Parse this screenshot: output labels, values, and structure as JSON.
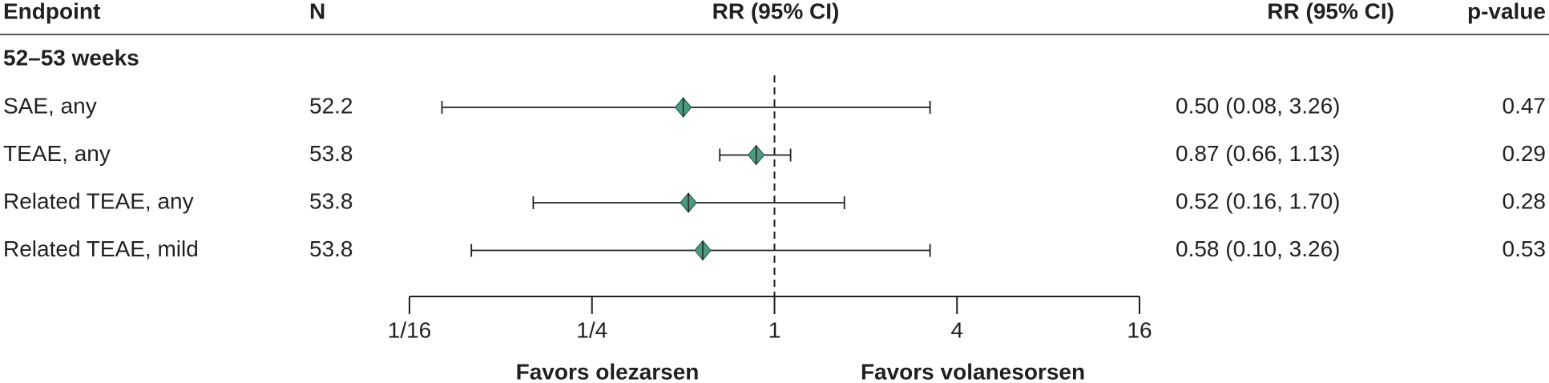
{
  "chart_data": {
    "type": "forest",
    "columns": {
      "endpoint": "Endpoint",
      "n": "N",
      "axis_header": "RR (95% CI)",
      "ci": "RR (95% CI)",
      "p": "p-value"
    },
    "group": "52–53 weeks",
    "categories": [
      "SAE, any",
      "TEAE, any",
      "Related TEAE, any",
      "Related TEAE, mild"
    ],
    "n": [
      52.2,
      53.8,
      53.8,
      53.8
    ],
    "values": [
      0.5,
      0.87,
      0.52,
      0.58
    ],
    "lower": [
      0.08,
      0.66,
      0.16,
      0.1
    ],
    "upper": [
      3.26,
      1.13,
      1.7,
      3.26
    ],
    "value_labels": [
      "0.50 (0.08, 3.26)",
      "0.87 (0.66, 1.13)",
      "0.52 (0.16, 1.70)",
      "0.58 (0.10, 3.26)"
    ],
    "p_values": [
      0.47,
      0.29,
      0.28,
      0.53
    ],
    "color": "#4a9a82",
    "xlim": [
      0.0625,
      16
    ],
    "xticks": [
      {
        "value": 0.0625,
        "label": "1/16"
      },
      {
        "value": 0.25,
        "label": "1/4"
      },
      1,
      4,
      16
    ],
    "x_log_scale": true,
    "reference_line": 1,
    "x_annotations": [
      "Favors olezarsen",
      "Favors volanesorsen"
    ]
  }
}
